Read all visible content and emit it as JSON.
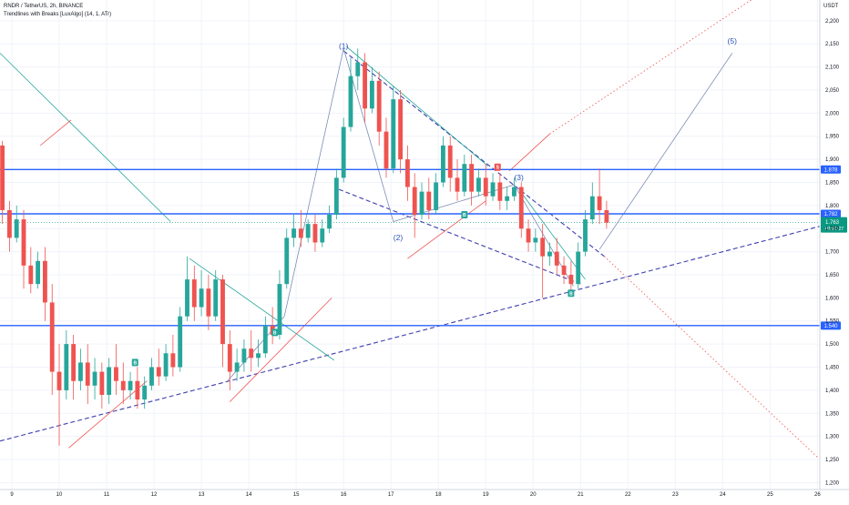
{
  "header": {
    "symbol_line": "RNDR / TetherUS, 2h, BINANCE",
    "indicator_line": "Trendlines with Breaks [LuxAlgo] (14, 1, ATr)"
  },
  "colors": {
    "up": "#26a69a",
    "down": "#ef5350",
    "level": "#2962ff",
    "trend_dash": "#3f3fb0",
    "grid": "#f0f3fa",
    "price_badge": "#089981"
  },
  "chart_data": {
    "type": "candlestick",
    "symbol": "RNDR / TetherUS",
    "interval": "2h",
    "exchange": "BINANCE",
    "y_unit": "USDT",
    "x_ticks": [
      "9",
      "10",
      "11",
      "12",
      "13",
      "14",
      "15",
      "16",
      "17",
      "18",
      "19",
      "20",
      "21",
      "22",
      "23",
      "24",
      "25",
      "26"
    ],
    "y_ticks": [
      "2,200",
      "2,150",
      "2,100",
      "2,050",
      "2,000",
      "1,950",
      "1,900",
      "1,850",
      "1,800",
      "1,750",
      "1,700",
      "1,650",
      "1,600",
      "1,550",
      "1,500",
      "1,450",
      "1,400",
      "1,350",
      "1,300",
      "1,250",
      "1,200"
    ],
    "y_tick_values": [
      2.2,
      2.15,
      2.1,
      2.05,
      2.0,
      1.95,
      1.9,
      1.85,
      1.8,
      1.75,
      1.7,
      1.65,
      1.6,
      1.55,
      1.5,
      1.45,
      1.4,
      1.35,
      1.3,
      1.25,
      1.2
    ],
    "ylim": [
      1.185,
      2.245
    ],
    "xlim": [
      8.75,
      26.05
    ],
    "horizontal_levels": [
      {
        "value": 1.878,
        "label": "1.878"
      },
      {
        "value": 1.782,
        "label": "1.782"
      },
      {
        "value": 1.54,
        "label": "1.540"
      }
    ],
    "current_price": {
      "value": 1.763,
      "label": "1.763",
      "countdown": "01:51:27"
    },
    "wave_labels": [
      {
        "text": "(1)",
        "x": 16.0,
        "y": 2.14
      },
      {
        "text": "(2)",
        "x": 17.15,
        "y": 1.725
      },
      {
        "text": "(3)",
        "x": 19.7,
        "y": 1.855
      },
      {
        "text": "(5)",
        "x": 24.2,
        "y": 2.15
      }
    ],
    "signals": [
      {
        "kind": "B",
        "x": 11.6,
        "y": 1.46
      },
      {
        "kind": "B",
        "x": 14.55,
        "y": 1.525
      },
      {
        "kind": "B",
        "x": 18.55,
        "y": 1.78
      },
      {
        "kind": "S",
        "x": 19.25,
        "y": 1.883
      },
      {
        "kind": "B",
        "x": 20.8,
        "y": 1.61
      }
    ],
    "lines": [
      {
        "style": "dashed",
        "color": "#3f3fb0",
        "x1": 8.75,
        "y1": 1.29,
        "x2": 26.05,
        "y2": 1.755
      },
      {
        "style": "dashed",
        "color": "#3f3fb0",
        "x1": 15.9,
        "y1": 1.835,
        "x2": 21.0,
        "y2": 1.63
      },
      {
        "style": "dashed",
        "color": "#3f3fb0",
        "x1": 16.0,
        "y1": 2.135,
        "x2": 21.5,
        "y2": 1.69
      },
      {
        "style": "solid",
        "color": "#26a69a",
        "x1": 8.75,
        "y1": 2.13,
        "x2": 12.35,
        "y2": 1.765
      },
      {
        "style": "solid",
        "color": "#26a69a",
        "x1": 12.75,
        "y1": 1.685,
        "x2": 15.8,
        "y2": 1.465
      },
      {
        "style": "solid",
        "color": "#26a69a",
        "x1": 16.05,
        "y1": 2.145,
        "x2": 19.05,
        "y2": 1.885
      },
      {
        "style": "solid",
        "color": "#26a69a",
        "x1": 19.7,
        "y1": 1.835,
        "x2": 21.1,
        "y2": 1.64
      },
      {
        "style": "solid",
        "color": "#ef5350",
        "x1": 9.6,
        "y1": 1.93,
        "x2": 10.25,
        "y2": 1.985
      },
      {
        "style": "solid",
        "color": "#ef5350",
        "x1": 10.2,
        "y1": 1.275,
        "x2": 11.85,
        "y2": 1.42
      },
      {
        "style": "solid",
        "color": "#ef5350",
        "x1": 13.6,
        "y1": 1.375,
        "x2": 15.75,
        "y2": 1.6
      },
      {
        "style": "solid",
        "color": "#ef5350",
        "x1": 17.35,
        "y1": 1.685,
        "x2": 19.0,
        "y2": 1.81
      },
      {
        "style": "solid",
        "color": "#ef5350",
        "x1": 19.5,
        "y1": 1.875,
        "x2": 20.35,
        "y2": 1.955
      },
      {
        "style": "dotted",
        "color": "#ef5350",
        "x1": 20.35,
        "y1": 1.955,
        "x2": 24.6,
        "y2": 2.245
      },
      {
        "style": "dotted",
        "color": "#ef5350",
        "x1": 21.5,
        "y1": 1.69,
        "x2": 26.0,
        "y2": 1.255
      },
      {
        "style": "solid",
        "color": "#7c8db5",
        "x1": 13.55,
        "y1": 1.42,
        "x2": 14.75,
        "y2": 1.56
      },
      {
        "style": "solid",
        "color": "#7c8db5",
        "x1": 14.75,
        "y1": 1.56,
        "x2": 16.0,
        "y2": 2.14
      },
      {
        "style": "solid",
        "color": "#7c8db5",
        "x1": 16.0,
        "y1": 2.14,
        "x2": 17.05,
        "y2": 1.765
      },
      {
        "style": "solid",
        "color": "#7c8db5",
        "x1": 17.05,
        "y1": 1.765,
        "x2": 19.6,
        "y2": 1.845
      },
      {
        "style": "solid",
        "color": "#7c8db5",
        "x1": 19.6,
        "y1": 1.845,
        "x2": 20.85,
        "y2": 1.625
      },
      {
        "style": "solid",
        "color": "#7c8db5",
        "x1": 21.4,
        "y1": 1.705,
        "x2": 24.2,
        "y2": 2.13
      }
    ],
    "candles": [
      {
        "x": 8.8,
        "o": 1.93,
        "h": 1.94,
        "c": 1.79,
        "l": 1.76
      },
      {
        "x": 8.95,
        "o": 1.79,
        "h": 1.81,
        "c": 1.73,
        "l": 1.7
      },
      {
        "x": 9.1,
        "o": 1.73,
        "h": 1.8,
        "c": 1.77,
        "l": 1.72
      },
      {
        "x": 9.25,
        "o": 1.77,
        "h": 1.79,
        "c": 1.67,
        "l": 1.62
      },
      {
        "x": 9.4,
        "o": 1.67,
        "h": 1.71,
        "c": 1.63,
        "l": 1.61
      },
      {
        "x": 9.55,
        "o": 1.63,
        "h": 1.7,
        "c": 1.68,
        "l": 1.62
      },
      {
        "x": 9.7,
        "o": 1.68,
        "h": 1.71,
        "c": 1.59,
        "l": 1.55
      },
      {
        "x": 9.85,
        "o": 1.59,
        "h": 1.63,
        "c": 1.44,
        "l": 1.39
      },
      {
        "x": 10.0,
        "o": 1.44,
        "h": 1.5,
        "c": 1.4,
        "l": 1.28
      },
      {
        "x": 10.15,
        "o": 1.4,
        "h": 1.53,
        "c": 1.5,
        "l": 1.38
      },
      {
        "x": 10.3,
        "o": 1.5,
        "h": 1.52,
        "c": 1.42,
        "l": 1.38
      },
      {
        "x": 10.45,
        "o": 1.42,
        "h": 1.49,
        "c": 1.46,
        "l": 1.4
      },
      {
        "x": 10.6,
        "o": 1.46,
        "h": 1.5,
        "c": 1.41,
        "l": 1.37
      },
      {
        "x": 10.75,
        "o": 1.41,
        "h": 1.47,
        "c": 1.44,
        "l": 1.38
      },
      {
        "x": 10.9,
        "o": 1.44,
        "h": 1.46,
        "c": 1.39,
        "l": 1.36
      },
      {
        "x": 11.05,
        "o": 1.39,
        "h": 1.47,
        "c": 1.45,
        "l": 1.37
      },
      {
        "x": 11.2,
        "o": 1.45,
        "h": 1.5,
        "c": 1.42,
        "l": 1.39
      },
      {
        "x": 11.35,
        "o": 1.42,
        "h": 1.46,
        "c": 1.4,
        "l": 1.37
      },
      {
        "x": 11.5,
        "o": 1.4,
        "h": 1.44,
        "c": 1.42,
        "l": 1.38
      },
      {
        "x": 11.65,
        "o": 1.42,
        "h": 1.45,
        "c": 1.38,
        "l": 1.36
      },
      {
        "x": 11.8,
        "o": 1.38,
        "h": 1.43,
        "c": 1.41,
        "l": 1.36
      },
      {
        "x": 11.95,
        "o": 1.41,
        "h": 1.47,
        "c": 1.45,
        "l": 1.4
      },
      {
        "x": 12.1,
        "o": 1.45,
        "h": 1.49,
        "c": 1.43,
        "l": 1.41
      },
      {
        "x": 12.25,
        "o": 1.43,
        "h": 1.5,
        "c": 1.48,
        "l": 1.42
      },
      {
        "x": 12.4,
        "o": 1.48,
        "h": 1.52,
        "c": 1.45,
        "l": 1.43
      },
      {
        "x": 12.55,
        "o": 1.45,
        "h": 1.58,
        "c": 1.56,
        "l": 1.44
      },
      {
        "x": 12.7,
        "o": 1.56,
        "h": 1.69,
        "c": 1.64,
        "l": 1.55
      },
      {
        "x": 12.85,
        "o": 1.64,
        "h": 1.67,
        "c": 1.58,
        "l": 1.55
      },
      {
        "x": 13.0,
        "o": 1.58,
        "h": 1.66,
        "c": 1.62,
        "l": 1.56
      },
      {
        "x": 13.15,
        "o": 1.62,
        "h": 1.65,
        "c": 1.56,
        "l": 1.53
      },
      {
        "x": 13.3,
        "o": 1.56,
        "h": 1.66,
        "c": 1.64,
        "l": 1.55
      },
      {
        "x": 13.45,
        "o": 1.64,
        "h": 1.65,
        "c": 1.5,
        "l": 1.45
      },
      {
        "x": 13.6,
        "o": 1.5,
        "h": 1.53,
        "c": 1.44,
        "l": 1.4
      },
      {
        "x": 13.75,
        "o": 1.44,
        "h": 1.49,
        "c": 1.46,
        "l": 1.42
      },
      {
        "x": 13.9,
        "o": 1.46,
        "h": 1.51,
        "c": 1.49,
        "l": 1.44
      },
      {
        "x": 14.05,
        "o": 1.49,
        "h": 1.53,
        "c": 1.47,
        "l": 1.44
      },
      {
        "x": 14.2,
        "o": 1.47,
        "h": 1.51,
        "c": 1.48,
        "l": 1.45
      },
      {
        "x": 14.35,
        "o": 1.48,
        "h": 1.56,
        "c": 1.54,
        "l": 1.47
      },
      {
        "x": 14.5,
        "o": 1.54,
        "h": 1.58,
        "c": 1.52,
        "l": 1.5
      },
      {
        "x": 14.65,
        "o": 1.52,
        "h": 1.66,
        "c": 1.63,
        "l": 1.51
      },
      {
        "x": 14.8,
        "o": 1.63,
        "h": 1.75,
        "c": 1.73,
        "l": 1.62
      },
      {
        "x": 14.95,
        "o": 1.73,
        "h": 1.78,
        "c": 1.75,
        "l": 1.71
      },
      {
        "x": 15.1,
        "o": 1.75,
        "h": 1.79,
        "c": 1.73,
        "l": 1.71
      },
      {
        "x": 15.25,
        "o": 1.73,
        "h": 1.77,
        "c": 1.76,
        "l": 1.72
      },
      {
        "x": 15.4,
        "o": 1.76,
        "h": 1.78,
        "c": 1.72,
        "l": 1.7
      },
      {
        "x": 15.55,
        "o": 1.72,
        "h": 1.77,
        "c": 1.75,
        "l": 1.71
      },
      {
        "x": 15.7,
        "o": 1.75,
        "h": 1.8,
        "c": 1.78,
        "l": 1.74
      },
      {
        "x": 15.85,
        "o": 1.78,
        "h": 1.88,
        "c": 1.86,
        "l": 1.77
      },
      {
        "x": 16.0,
        "o": 1.86,
        "h": 1.99,
        "c": 1.97,
        "l": 1.85
      },
      {
        "x": 16.15,
        "o": 1.97,
        "h": 2.12,
        "c": 2.08,
        "l": 1.96
      },
      {
        "x": 16.3,
        "o": 2.08,
        "h": 2.14,
        "c": 2.11,
        "l": 2.05
      },
      {
        "x": 16.45,
        "o": 2.11,
        "h": 2.13,
        "c": 2.01,
        "l": 1.98
      },
      {
        "x": 16.6,
        "o": 2.01,
        "h": 2.1,
        "c": 2.07,
        "l": 2.0
      },
      {
        "x": 16.75,
        "o": 2.07,
        "h": 2.09,
        "c": 1.96,
        "l": 1.93
      },
      {
        "x": 16.9,
        "o": 1.96,
        "h": 1.99,
        "c": 1.88,
        "l": 1.86
      },
      {
        "x": 17.05,
        "o": 1.88,
        "h": 2.06,
        "c": 2.03,
        "l": 1.87
      },
      {
        "x": 17.2,
        "o": 2.03,
        "h": 2.05,
        "c": 1.9,
        "l": 1.87
      },
      {
        "x": 17.35,
        "o": 1.9,
        "h": 1.93,
        "c": 1.84,
        "l": 1.81
      },
      {
        "x": 17.5,
        "o": 1.84,
        "h": 1.87,
        "c": 1.78,
        "l": 1.73
      },
      {
        "x": 17.65,
        "o": 1.78,
        "h": 1.85,
        "c": 1.83,
        "l": 1.77
      },
      {
        "x": 17.8,
        "o": 1.83,
        "h": 1.86,
        "c": 1.79,
        "l": 1.77
      },
      {
        "x": 17.95,
        "o": 1.79,
        "h": 1.87,
        "c": 1.85,
        "l": 1.78
      },
      {
        "x": 18.1,
        "o": 1.85,
        "h": 1.95,
        "c": 1.93,
        "l": 1.84
      },
      {
        "x": 18.25,
        "o": 1.93,
        "h": 1.95,
        "c": 1.86,
        "l": 1.83
      },
      {
        "x": 18.4,
        "o": 1.86,
        "h": 1.9,
        "c": 1.83,
        "l": 1.81
      },
      {
        "x": 18.55,
        "o": 1.83,
        "h": 1.91,
        "c": 1.89,
        "l": 1.82
      },
      {
        "x": 18.7,
        "o": 1.89,
        "h": 1.91,
        "c": 1.83,
        "l": 1.8
      },
      {
        "x": 18.85,
        "o": 1.83,
        "h": 1.88,
        "c": 1.86,
        "l": 1.82
      },
      {
        "x": 19.0,
        "o": 1.86,
        "h": 1.89,
        "c": 1.82,
        "l": 1.8
      },
      {
        "x": 19.15,
        "o": 1.82,
        "h": 1.87,
        "c": 1.85,
        "l": 1.81
      },
      {
        "x": 19.3,
        "o": 1.85,
        "h": 1.87,
        "c": 1.81,
        "l": 1.79
      },
      {
        "x": 19.45,
        "o": 1.81,
        "h": 1.84,
        "c": 1.82,
        "l": 1.79
      },
      {
        "x": 19.6,
        "o": 1.82,
        "h": 1.86,
        "c": 1.84,
        "l": 1.81
      },
      {
        "x": 19.75,
        "o": 1.84,
        "h": 1.85,
        "c": 1.75,
        "l": 1.73
      },
      {
        "x": 19.9,
        "o": 1.75,
        "h": 1.77,
        "c": 1.72,
        "l": 1.7
      },
      {
        "x": 20.05,
        "o": 1.72,
        "h": 1.75,
        "c": 1.73,
        "l": 1.7
      },
      {
        "x": 20.2,
        "o": 1.73,
        "h": 1.76,
        "c": 1.69,
        "l": 1.6
      },
      {
        "x": 20.35,
        "o": 1.69,
        "h": 1.72,
        "c": 1.7,
        "l": 1.67
      },
      {
        "x": 20.5,
        "o": 1.7,
        "h": 1.73,
        "c": 1.67,
        "l": 1.65
      },
      {
        "x": 20.65,
        "o": 1.67,
        "h": 1.69,
        "c": 1.65,
        "l": 1.63
      },
      {
        "x": 20.8,
        "o": 1.65,
        "h": 1.68,
        "c": 1.63,
        "l": 1.61
      },
      {
        "x": 20.95,
        "o": 1.63,
        "h": 1.72,
        "c": 1.7,
        "l": 1.62
      },
      {
        "x": 21.1,
        "o": 1.7,
        "h": 1.79,
        "c": 1.77,
        "l": 1.69
      },
      {
        "x": 21.25,
        "o": 1.77,
        "h": 1.85,
        "c": 1.82,
        "l": 1.76
      },
      {
        "x": 21.4,
        "o": 1.82,
        "h": 1.88,
        "c": 1.79,
        "l": 1.76
      },
      {
        "x": 21.55,
        "o": 1.79,
        "h": 1.81,
        "c": 1.763,
        "l": 1.75
      }
    ]
  }
}
